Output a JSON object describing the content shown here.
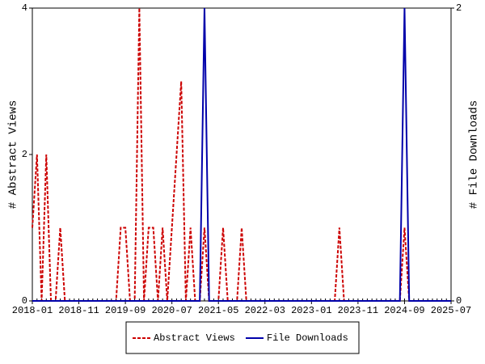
{
  "chart_data": {
    "type": "line",
    "x": [
      "2018-01",
      "2018-02",
      "2018-03",
      "2018-04",
      "2018-05",
      "2018-06",
      "2018-07",
      "2018-08",
      "2018-09",
      "2018-10",
      "2018-11",
      "2018-12",
      "2019-01",
      "2019-02",
      "2019-03",
      "2019-04",
      "2019-05",
      "2019-06",
      "2019-07",
      "2019-08",
      "2019-09",
      "2019-10",
      "2019-11",
      "2019-12",
      "2020-01",
      "2020-02",
      "2020-03",
      "2020-04",
      "2020-05",
      "2020-06",
      "2020-07",
      "2020-08",
      "2020-09",
      "2020-10",
      "2020-11",
      "2020-12",
      "2021-01",
      "2021-02",
      "2021-03",
      "2021-04",
      "2021-05",
      "2021-06",
      "2021-07",
      "2021-08",
      "2021-09",
      "2021-10",
      "2021-11",
      "2021-12",
      "2022-01",
      "2022-02",
      "2022-03",
      "2022-04",
      "2022-05",
      "2022-06",
      "2022-07",
      "2022-08",
      "2022-09",
      "2022-10",
      "2022-11",
      "2022-12",
      "2023-01",
      "2023-02",
      "2023-03",
      "2023-04",
      "2023-05",
      "2023-06",
      "2023-07",
      "2023-08",
      "2023-09",
      "2023-10",
      "2023-11",
      "2023-12",
      "2024-01",
      "2024-02",
      "2024-03",
      "2024-04",
      "2024-05",
      "2024-06",
      "2024-07",
      "2024-08",
      "2024-09",
      "2024-10",
      "2024-11",
      "2024-12",
      "2025-01",
      "2025-02",
      "2025-03",
      "2025-04",
      "2025-05",
      "2025-06",
      "2025-07"
    ],
    "xticks": [
      "2018-01",
      "2018-11",
      "2019-09",
      "2020-07",
      "2021-05",
      "2022-03",
      "2023-01",
      "2023-11",
      "2024-09",
      "2025-07"
    ],
    "ylabel": "# Abstract Views",
    "y2label": "# File Downloads",
    "ylim": [
      0,
      4
    ],
    "yticks": [
      0,
      2,
      4
    ],
    "y2lim": [
      0,
      2
    ],
    "y2ticks": [
      0,
      2
    ],
    "series": [
      {
        "name": "Abstract Views",
        "color": "#cc0000",
        "style": "dashed",
        "values": [
          1,
          2,
          0,
          2,
          0,
          0,
          1,
          0,
          0,
          0,
          0,
          0,
          0,
          0,
          0,
          0,
          0,
          0,
          0,
          1,
          1,
          0,
          0,
          4,
          0,
          1,
          1,
          0,
          1,
          0,
          1,
          2,
          3,
          0,
          1,
          0,
          0,
          1,
          0,
          0,
          0,
          1,
          0,
          0,
          0,
          1,
          0,
          0,
          0,
          0,
          0,
          0,
          0,
          0,
          0,
          0,
          0,
          0,
          0,
          0,
          0,
          0,
          0,
          0,
          0,
          0,
          1,
          0,
          0,
          0,
          0,
          0,
          0,
          0,
          0,
          0,
          0,
          0,
          0,
          0,
          1,
          0,
          0,
          0,
          0,
          0,
          0,
          0,
          0,
          0,
          0
        ]
      },
      {
        "name": "File Downloads",
        "color": "#0000aa",
        "style": "solid",
        "axis": "y2",
        "values": [
          0,
          0,
          0,
          0,
          0,
          0,
          0,
          0,
          0,
          0,
          0,
          0,
          0,
          0,
          0,
          0,
          0,
          0,
          0,
          0,
          0,
          0,
          0,
          0,
          0,
          0,
          0,
          0,
          0,
          0,
          0,
          0,
          0,
          0,
          0,
          0,
          0,
          2,
          0,
          0,
          0,
          0,
          0,
          0,
          0,
          0,
          0,
          0,
          0,
          0,
          0,
          0,
          0,
          0,
          0,
          0,
          0,
          0,
          0,
          0,
          0,
          0,
          0,
          0,
          0,
          0,
          0,
          0,
          0,
          0,
          0,
          0,
          0,
          0,
          0,
          0,
          0,
          0,
          0,
          0,
          2,
          0,
          0,
          0,
          0,
          0,
          0,
          0,
          0,
          0,
          0
        ]
      }
    ]
  }
}
